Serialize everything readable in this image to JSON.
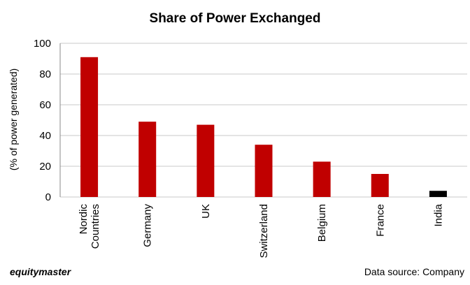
{
  "chart_data": {
    "type": "bar",
    "title": "Share of Power Exchanged",
    "xlabel": "",
    "ylabel": "(% of power generated)",
    "categories": [
      [
        "Nordic",
        "Countries"
      ],
      [
        "Germany"
      ],
      [
        "UK"
      ],
      [
        "Switzerland"
      ],
      [
        "Belgium"
      ],
      [
        "France"
      ],
      [
        "India"
      ]
    ],
    "values": [
      91,
      49,
      47,
      34,
      23,
      15,
      4
    ],
    "ylim": [
      0,
      100
    ],
    "yticks": [
      0,
      20,
      40,
      60,
      80,
      100
    ],
    "grid": true,
    "colors": {
      "bar": "#c00000",
      "highlight": "#000000",
      "grid": "#c8c8c8"
    },
    "highlight_category": "India"
  },
  "footer": {
    "brand": "equitymaster",
    "source": "Data source: Company"
  }
}
